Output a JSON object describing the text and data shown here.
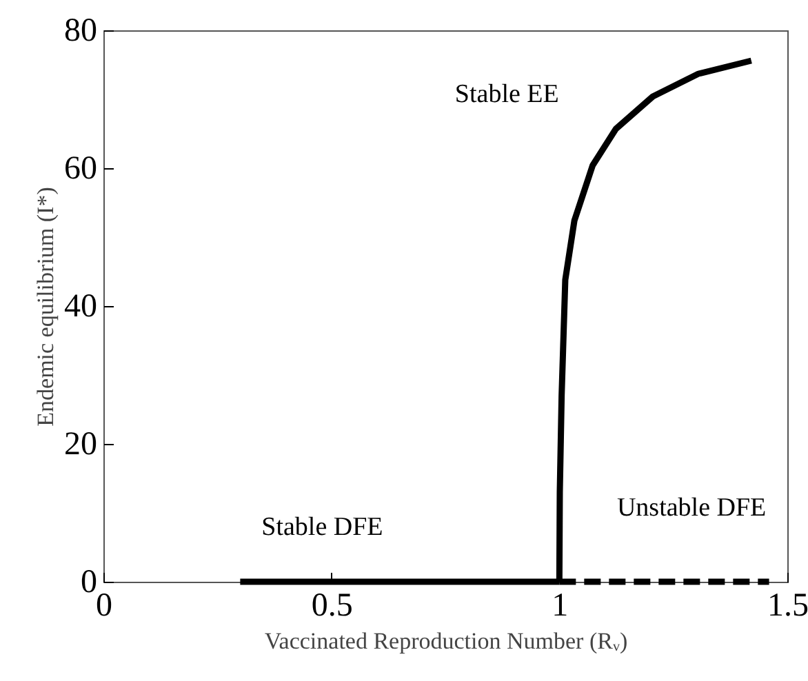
{
  "chart_data": {
    "type": "line",
    "xlabel": "Vaccinated Reproduction Number (Rᵥ)",
    "ylabel": "Endemic equilibrium (I*)",
    "xlim": [
      0,
      1.5
    ],
    "xticks": [
      0,
      0.5,
      1,
      1.5
    ],
    "ylim": [
      0,
      80
    ],
    "yticks": [
      0,
      20,
      40,
      60,
      80
    ],
    "grid": false,
    "marker": "none",
    "series": [
      {
        "color": "#000000",
        "line_style": "solid",
        "x": [
          0.3,
          1
        ],
        "values": [
          0,
          0
        ]
      },
      {
        "color": "#000000",
        "line_style": "solid",
        "x": [
          1,
          1.001,
          1.005,
          1.013,
          1.033,
          1.073,
          1.124,
          1.205,
          1.305,
          1.421
        ],
        "values": [
          0,
          13,
          27,
          43.8,
          52.4,
          60.4,
          65.7,
          70.4,
          73.7,
          75.6
        ]
      },
      {
        "color": "#000000",
        "line_style": "dashed",
        "x": [
          1,
          1.46
        ],
        "values": [
          0,
          0
        ]
      }
    ],
    "annotations": [
      "Stable EE",
      "Stable DFE",
      "Unstable DFE"
    ]
  }
}
